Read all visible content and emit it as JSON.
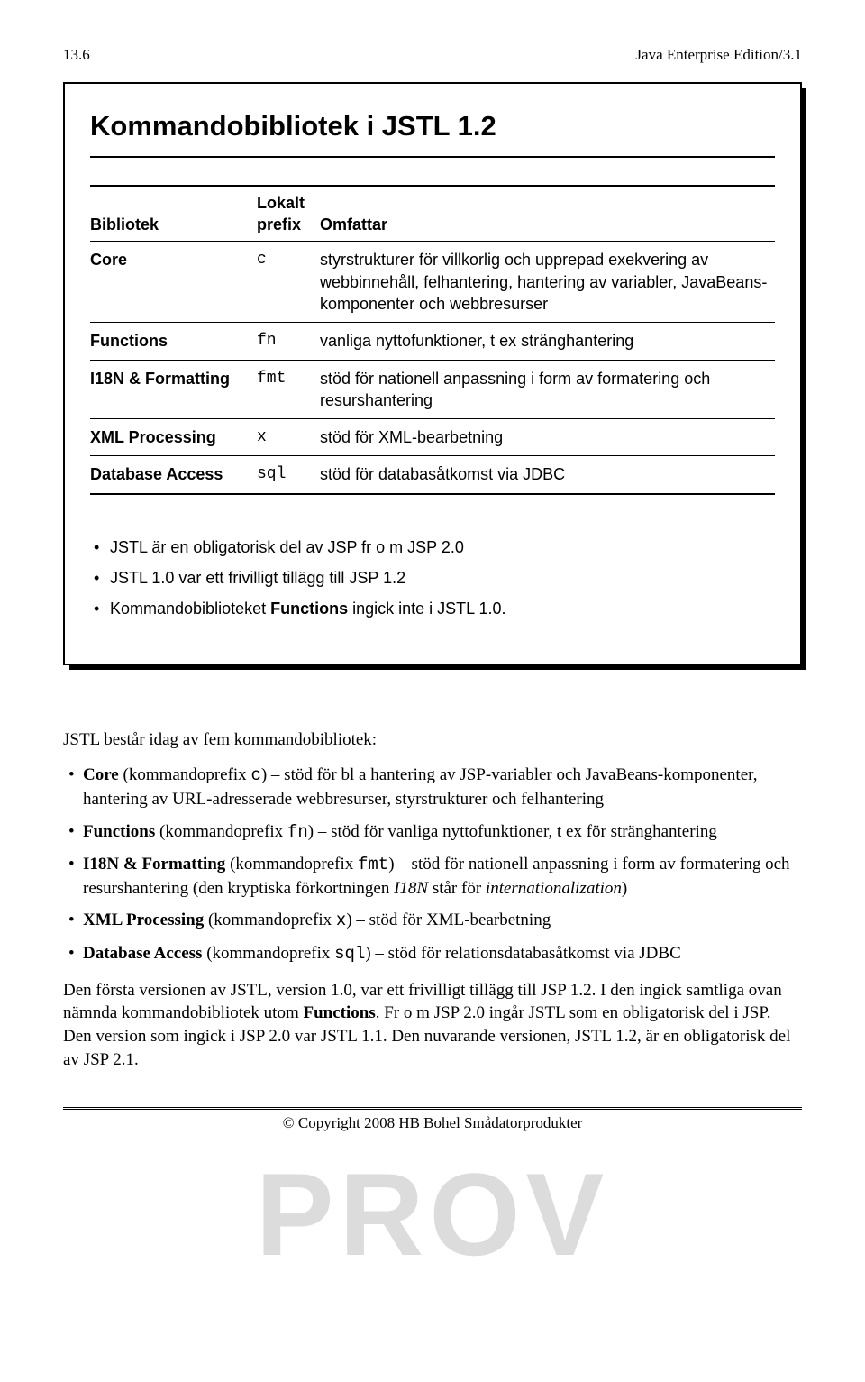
{
  "header": {
    "page_num": "13.6",
    "section": "Java Enterprise Edition/3.1"
  },
  "box": {
    "title": "Kommandobibliotek i JSTL 1.2",
    "table": {
      "columns": [
        "Bibliotek",
        "Lokalt prefix",
        "Omfattar"
      ],
      "rows": [
        {
          "lib": "Core",
          "prefix": "c",
          "desc": "styrstrukturer för villkorlig och upprepad exekvering av webbinnehåll, felhantering, hantering av variabler, JavaBeans-komponenter och webbresurser"
        },
        {
          "lib": "Functions",
          "prefix": "fn",
          "desc": "vanliga nyttofunktioner, t ex stränghantering"
        },
        {
          "lib": "I18N & Formatting",
          "prefix": "fmt",
          "desc": "stöd för nationell anpassning i form av formatering och resurshantering"
        },
        {
          "lib": "XML Processing",
          "prefix": "x",
          "desc": "stöd för XML-bearbetning"
        },
        {
          "lib": "Database Access",
          "prefix": "sql",
          "desc": "stöd för databasåtkomst via JDBC"
        }
      ]
    },
    "bullets": [
      "JSTL är en obligatorisk del av JSP fr o m JSP 2.0",
      "JSTL 1.0 var ett frivilligt tillägg till JSP 1.2",
      "Kommandobiblioteket <b>Functions</b> ingick inte i JSTL 1.0."
    ]
  },
  "body": {
    "intro": "JSTL består idag av fem kommandobibliotek:",
    "items": [
      "<b>Core</b> (kommandoprefix <code>c</code>) – stöd för bl a hantering av JSP-variabler och JavaBeans-komponenter, hantering av URL-adresserade webbresurser, styrstrukturer och felhantering",
      "<b>Functions</b> (kommandoprefix <code>fn</code>) – stöd för vanliga nyttofunktioner, t ex för stränghantering",
      "<b>I18N &amp; Formatting</b> (kommandoprefix <code>fmt</code>) – stöd för nationell anpassning i form av formatering och resurshantering (den kryptiska förkortningen <i>I18N</i> står för <i>internationalization</i>)",
      "<b>XML Processing</b> (kommandoprefix <code>x</code>) – stöd för XML-bearbetning",
      "<b>Database Access</b> (kommandoprefix <code>sql</code>) – stöd för relationsdatabasåtkomst via JDBC"
    ],
    "para": "Den första versionen av JSTL, version 1.0, var ett frivilligt tillägg till JSP 1.2. I den ingick samtliga ovan nämnda kommandobibliotek utom <b>Functions</b>. Fr o m JSP 2.0 ingår JSTL som en obligatorisk del i JSP. Den version som ingick i JSP 2.0 var JSTL 1.1. Den nuvarande versionen, JSTL 1.2, är en obligatorisk del av JSP 2.1."
  },
  "watermark": "PROV",
  "footer": "© Copyright 2008 HB Bohel Smådatorprodukter"
}
